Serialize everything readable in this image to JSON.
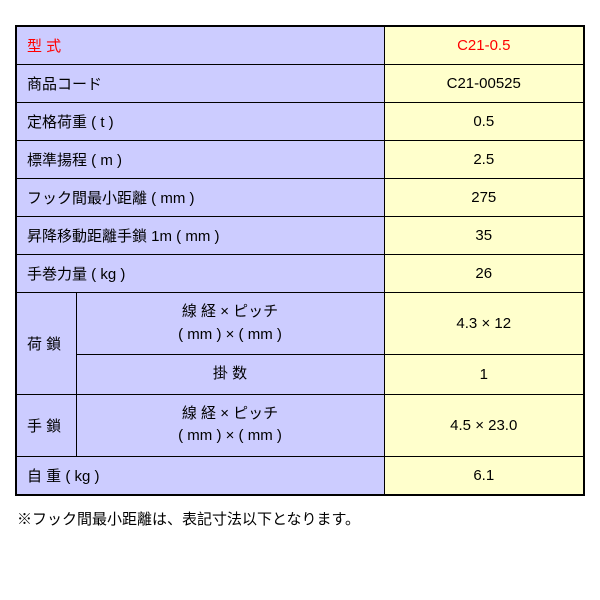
{
  "colors": {
    "label_bg": "#ccccff",
    "value_bg": "#ffffcc",
    "border": "#000000",
    "header_text": "#ff0000",
    "body_text": "#000000"
  },
  "header": {
    "label": "型 式",
    "value": "C21-0.5"
  },
  "rows": [
    {
      "label": "商品コード",
      "value": "C21-00525"
    },
    {
      "label": "定格荷重 ( t )",
      "value": "0.5"
    },
    {
      "label": "標準揚程 ( m )",
      "value": "2.5"
    },
    {
      "label": "フック間最小距離 ( mm )",
      "value": "275"
    },
    {
      "label": "昇降移動距離手鎖 1m ( mm )",
      "value": "35"
    },
    {
      "label": "手巻力量 ( kg )",
      "value": "26"
    }
  ],
  "load_chain": {
    "group_label": "荷 鎖",
    "sub1_label_line1": "線 経 × ピッチ",
    "sub1_label_line2": "( mm ) × ( mm )",
    "sub1_value": "4.3 × 12",
    "sub2_label": "掛 数",
    "sub2_value": "1"
  },
  "hand_chain": {
    "group_label": "手 鎖",
    "sub_label_line1": "線 経 × ピッチ",
    "sub_label_line2": "( mm ) × ( mm )",
    "sub_value": "4.5 × 23.0"
  },
  "weight": {
    "label": "自 重 ( kg )",
    "value": "6.1"
  },
  "footnote": "※フック間最小距離は、表記寸法以下となります。"
}
